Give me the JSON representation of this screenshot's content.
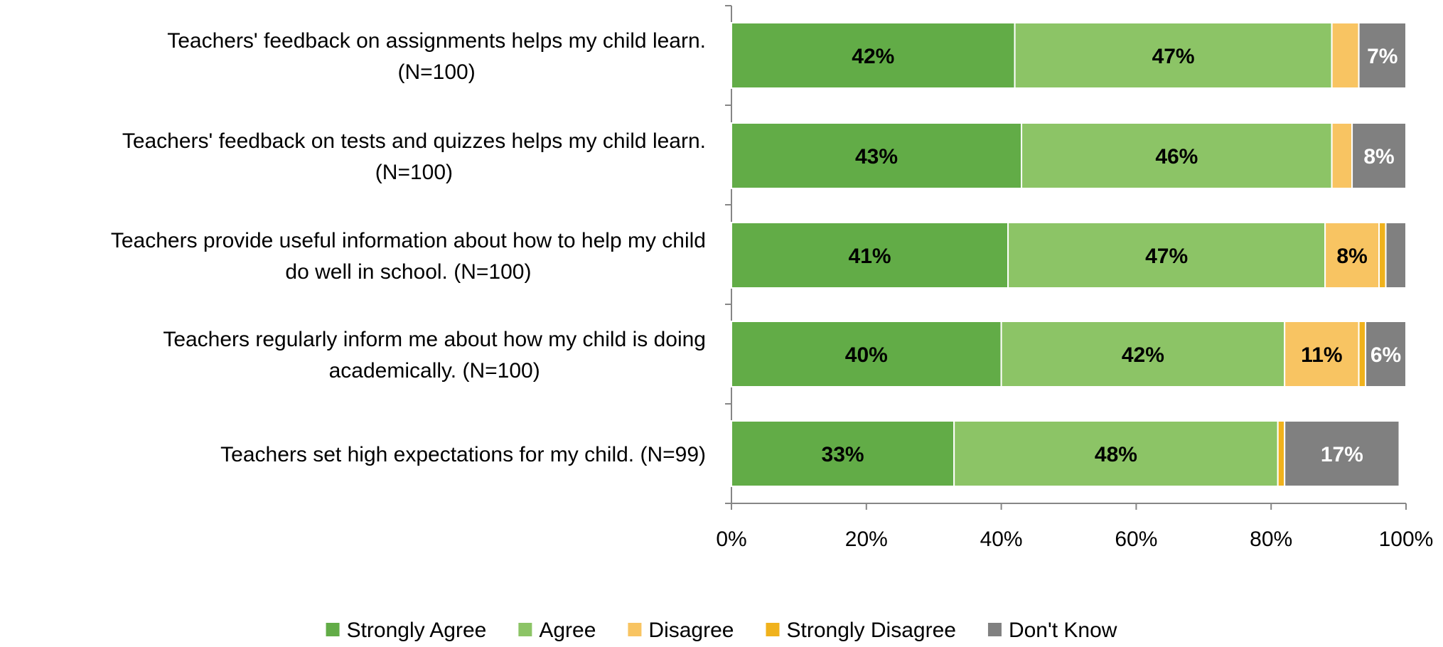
{
  "chart_data": {
    "type": "bar",
    "orientation": "horizontal",
    "stacked": true,
    "categories": [
      [
        "Teachers' feedback on assignments helps my child learn.",
        "(N=100)"
      ],
      [
        "Teachers' feedback on tests and quizzes helps my child learn.",
        "(N=100)"
      ],
      [
        "Teachers provide useful information about how to help my child",
        "do well in school. (N=100)"
      ],
      [
        "Teachers regularly inform me about how my child is doing",
        "academically. (N=100)"
      ],
      [
        "Teachers set high expectations for my child. (N=99)"
      ]
    ],
    "series": [
      {
        "name": "Strongly Agree",
        "color": "#62ac47",
        "label_color": "#000000",
        "values": [
          42,
          43,
          41,
          40,
          33
        ],
        "labels": [
          "42%",
          "43%",
          "41%",
          "40%",
          "33%"
        ]
      },
      {
        "name": "Agree",
        "color": "#8cc466",
        "label_color": "#000000",
        "values": [
          47,
          46,
          47,
          42,
          48
        ],
        "labels": [
          "47%",
          "46%",
          "47%",
          "42%",
          "48%"
        ]
      },
      {
        "name": "Disagree",
        "color": "#f8c462",
        "label_color": "#000000",
        "values": [
          4,
          3,
          8,
          11,
          0
        ],
        "labels": [
          "",
          "",
          "8%",
          "11%",
          ""
        ]
      },
      {
        "name": "Strongly Disagree",
        "color": "#f0b21c",
        "label_color": "#000000",
        "values": [
          0,
          0,
          1,
          1,
          1
        ],
        "labels": [
          "",
          "",
          "",
          "",
          ""
        ]
      },
      {
        "name": "Don't Know",
        "color": "#808080",
        "label_color": "#ffffff",
        "values": [
          7,
          8,
          3,
          6,
          17
        ],
        "labels": [
          "7%",
          "8%",
          "",
          "6%",
          "17%"
        ]
      }
    ],
    "xaxis_ticks": [
      "0%",
      "20%",
      "40%",
      "60%",
      "80%",
      "100%"
    ],
    "xlim": [
      0,
      100
    ],
    "grid": false,
    "legend_position": "bottom"
  }
}
